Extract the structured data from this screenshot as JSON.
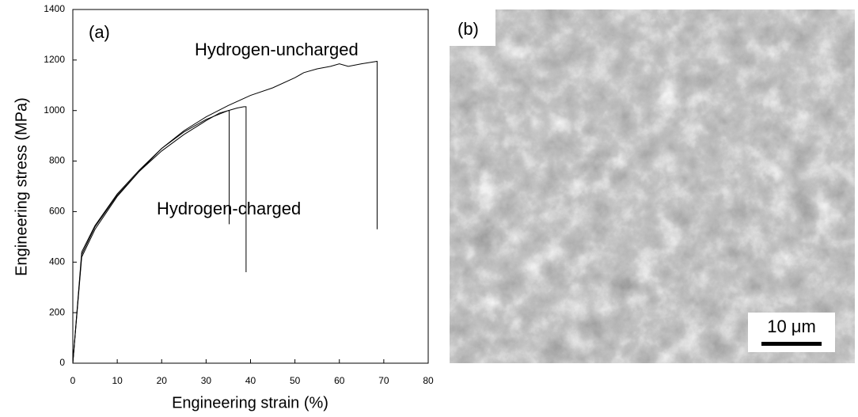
{
  "chart_data": {
    "type": "line",
    "xlabel": "Engineering strain (%)",
    "ylabel": "Engineering stress (MPa)",
    "annotations": [
      "(a)",
      "Hydrogen-uncharged",
      "Hydrogen-charged"
    ],
    "xlim": [
      0,
      80
    ],
    "xticks": [
      0,
      10,
      20,
      30,
      40,
      50,
      60,
      70,
      80
    ],
    "ylim": [
      0,
      1400
    ],
    "yticks": [
      0,
      200,
      400,
      600,
      800,
      1000,
      1200,
      1400
    ],
    "series": [
      {
        "color": "#000000",
        "x": [
          0,
          2,
          5,
          10,
          15,
          20,
          25,
          30,
          35,
          40,
          45,
          50,
          52,
          55,
          58,
          60,
          62,
          65,
          68.5,
          68.5
        ],
        "values": [
          0,
          420,
          530,
          660,
          760,
          850,
          920,
          975,
          1020,
          1060,
          1090,
          1130,
          1150,
          1165,
          1175,
          1185,
          1175,
          1185,
          1195,
          530
        ]
      },
      {
        "color": "#000000",
        "x": [
          0,
          2,
          5,
          10,
          15,
          20,
          25,
          30,
          33,
          35,
          35.2,
          35.2
        ],
        "values": [
          0,
          430,
          540,
          665,
          760,
          840,
          905,
          960,
          990,
          1000,
          1000,
          550
        ]
      },
      {
        "color": "#000000",
        "x": [
          0,
          2,
          5,
          10,
          15,
          20,
          25,
          30,
          35,
          37,
          38.5,
          39,
          39
        ],
        "values": [
          0,
          440,
          545,
          670,
          765,
          850,
          915,
          965,
          1000,
          1010,
          1015,
          1015,
          360
        ]
      }
    ]
  },
  "image_panel": {
    "label": "(b)",
    "scale_bar": "10 μm"
  }
}
